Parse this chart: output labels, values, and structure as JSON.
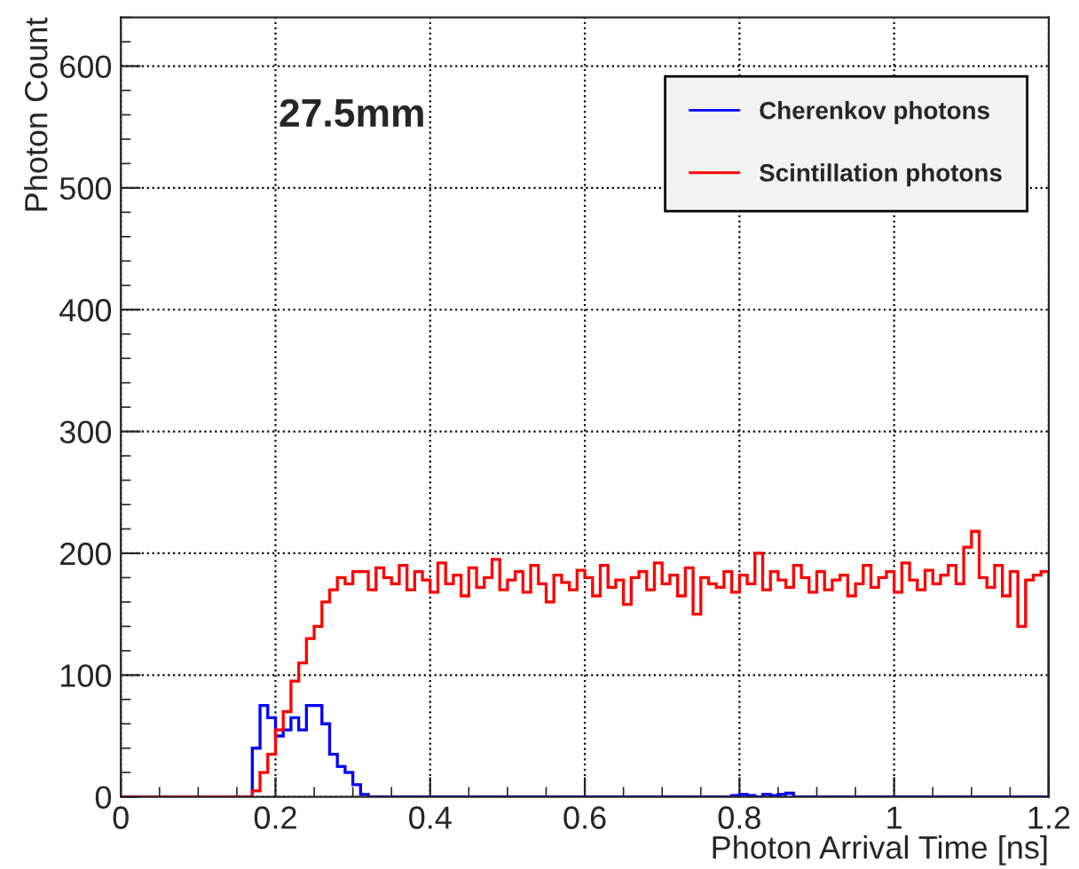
{
  "chart_data": {
    "type": "histogram",
    "xlabel": "Photon Arrival Time [ns]",
    "ylabel": "Photon Count",
    "annotations": [
      "27.5mm"
    ],
    "bins": [
      0,
      0.01,
      0.02,
      0.03,
      0.04,
      0.05,
      0.06,
      0.07,
      0.08,
      0.09,
      0.1,
      0.11,
      0.12,
      0.13,
      0.14,
      0.15,
      0.16,
      0.17,
      0.18,
      0.19,
      0.2,
      0.21,
      0.22,
      0.23,
      0.24,
      0.25,
      0.26,
      0.27,
      0.28,
      0.29,
      0.3,
      0.31,
      0.32,
      0.33,
      0.34,
      0.35,
      0.36,
      0.37,
      0.38,
      0.39,
      0.4,
      0.41,
      0.42,
      0.43,
      0.44,
      0.45,
      0.46,
      0.47,
      0.48,
      0.49,
      0.5,
      0.51,
      0.52,
      0.53,
      0.54,
      0.55,
      0.56,
      0.57,
      0.58,
      0.59,
      0.6,
      0.61,
      0.62,
      0.63,
      0.64,
      0.65,
      0.66,
      0.67,
      0.68,
      0.69,
      0.7,
      0.71,
      0.72,
      0.73,
      0.74,
      0.75,
      0.76,
      0.77,
      0.78,
      0.79,
      0.8,
      0.81,
      0.82,
      0.83,
      0.84,
      0.85,
      0.86,
      0.87,
      0.88,
      0.89,
      0.9,
      0.91,
      0.92,
      0.93,
      0.94,
      0.95,
      0.96,
      0.97,
      0.98,
      0.99,
      1,
      1.01,
      1.02,
      1.03,
      1.04,
      1.05,
      1.06,
      1.07,
      1.08,
      1.09,
      1.1,
      1.11,
      1.12,
      1.13,
      1.14,
      1.15,
      1.16,
      1.17,
      1.18,
      1.19,
      1.2
    ],
    "series": [
      {
        "name": "Cherenkov photons",
        "color": "#0000ff",
        "values": [
          0,
          0,
          0,
          0,
          0,
          0,
          0,
          0,
          0,
          0,
          0,
          0,
          0,
          0,
          0,
          0,
          0,
          40,
          75,
          65,
          50,
          55,
          65,
          55,
          75,
          75,
          60,
          35,
          25,
          20,
          10,
          2,
          0,
          0,
          0,
          0,
          0,
          0,
          0,
          0,
          0,
          0,
          0,
          0,
          0,
          0,
          0,
          0,
          0,
          0,
          0,
          0,
          0,
          0,
          0,
          0,
          0,
          0,
          0,
          0,
          0,
          0,
          0,
          0,
          0,
          0,
          0,
          0,
          0,
          0,
          0,
          0,
          0,
          0,
          0,
          0,
          0,
          0,
          0,
          1,
          2,
          1,
          0,
          2,
          1,
          2,
          3,
          0,
          0,
          0,
          0,
          0,
          0,
          0,
          0,
          0,
          0,
          0,
          0,
          0,
          0,
          0,
          0,
          0,
          0,
          0,
          0,
          0,
          0,
          0,
          0,
          0,
          0,
          0,
          0,
          0,
          0,
          0,
          0,
          0
        ]
      },
      {
        "name": "Scintillation photons",
        "color": "#ff0000",
        "values": [
          0,
          0,
          0,
          0,
          0,
          0,
          0,
          0,
          0,
          0,
          0,
          0,
          0,
          0,
          0,
          0,
          0,
          5,
          20,
          35,
          55,
          70,
          95,
          110,
          130,
          140,
          160,
          170,
          180,
          175,
          185,
          185,
          170,
          188,
          180,
          175,
          190,
          170,
          185,
          178,
          168,
          192,
          175,
          182,
          165,
          188,
          172,
          180,
          195,
          170,
          178,
          185,
          168,
          190,
          175,
          160,
          182,
          176,
          170,
          186,
          180,
          165,
          190,
          172,
          178,
          158,
          180,
          185,
          170,
          192,
          175,
          182,
          165,
          188,
          150,
          180,
          175,
          172,
          185,
          168,
          182,
          175,
          200,
          170,
          185,
          178,
          172,
          190,
          180,
          168,
          185,
          170,
          178,
          182,
          165,
          175,
          190,
          172,
          180,
          185,
          168,
          192,
          178,
          170,
          186,
          175,
          182,
          190,
          175,
          205,
          218,
          180,
          172,
          190,
          165,
          185,
          140,
          178,
          182,
          185
        ]
      }
    ],
    "xlim": [
      0,
      1.2
    ],
    "ylim": [
      0,
      640
    ],
    "xticks": [
      0,
      0.2,
      0.4,
      0.6,
      0.8,
      1,
      1.2
    ],
    "yticks": [
      0,
      100,
      200,
      300,
      400,
      500,
      600
    ],
    "grid": true,
    "legend": "top right"
  }
}
